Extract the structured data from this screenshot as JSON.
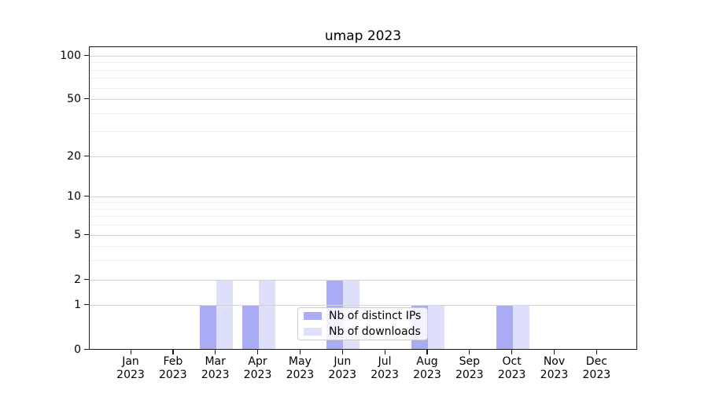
{
  "title": "umap 2023",
  "chart_data": {
    "type": "bar",
    "title": "umap 2023",
    "categories": [
      "Jan 2023",
      "Feb 2023",
      "Mar 2023",
      "Apr 2023",
      "May 2023",
      "Jun 2023",
      "Jul 2023",
      "Aug 2023",
      "Sep 2023",
      "Oct 2023",
      "Nov 2023",
      "Dec 2023"
    ],
    "x_tick_line1": [
      "Jan",
      "Feb",
      "Mar",
      "Apr",
      "May",
      "Jun",
      "Jul",
      "Aug",
      "Sep",
      "Oct",
      "Nov",
      "Dec"
    ],
    "x_tick_line2": [
      "2023",
      "2023",
      "2023",
      "2023",
      "2023",
      "2023",
      "2023",
      "2023",
      "2023",
      "2023",
      "2023",
      "2023"
    ],
    "series": [
      {
        "name": "Nb of distinct IPs",
        "color": "#a9acf4",
        "values": [
          0,
          0,
          1,
          1,
          0,
          2,
          0,
          1,
          0,
          1,
          0,
          0
        ]
      },
      {
        "name": "Nb of downloads",
        "color": "#dddffb",
        "values": [
          0,
          0,
          2,
          2,
          0,
          2,
          0,
          1,
          0,
          1,
          0,
          0
        ]
      }
    ],
    "y_axis": {
      "ticks": [
        0,
        1,
        2,
        5,
        10,
        20,
        50,
        100
      ],
      "minor_gridline_values": [
        3,
        4,
        6,
        7,
        8,
        9,
        30,
        40,
        60,
        70,
        80,
        90
      ],
      "scale": "log-like with 0 at baseline",
      "top_value": 110
    },
    "xlabel": "",
    "ylabel": "",
    "grid": "horizontal major and minor gridlines",
    "legend": {
      "position": "lower center",
      "items": [
        "Nb of distinct IPs",
        "Nb of downloads"
      ]
    },
    "colors": {
      "background": "#ffffff",
      "grid_major": "#d4d4d4",
      "grid_minor": "#efefef",
      "axis": "#1a1a1a"
    }
  }
}
